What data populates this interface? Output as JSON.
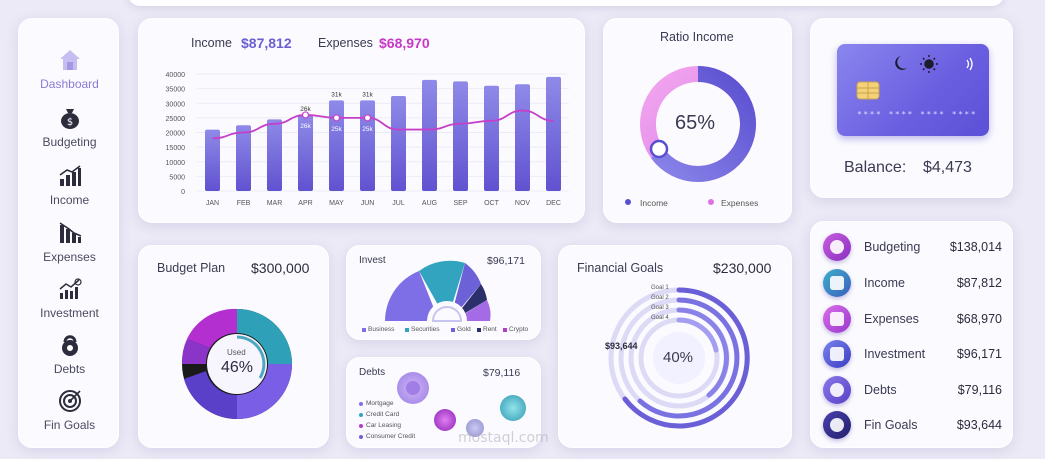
{
  "sidebar": {
    "items": [
      {
        "label": "Dashboard",
        "icon": "house-icon",
        "active": true
      },
      {
        "label": "Budgeting",
        "icon": "money-bag-icon"
      },
      {
        "label": "Income",
        "icon": "bar-chart-up-icon"
      },
      {
        "label": "Expenses",
        "icon": "bar-chart-down-icon"
      },
      {
        "label": "Investment",
        "icon": "investment-chart-icon"
      },
      {
        "label": "Debts",
        "icon": "kettlebell-icon"
      },
      {
        "label": "Fin Goals",
        "icon": "target-icon"
      }
    ]
  },
  "monthly": {
    "income_label": "Income",
    "income_value": "$87,812",
    "expenses_label": "Expenses",
    "expenses_value": "$68,970"
  },
  "ratio": {
    "title": "Ratio Income",
    "value": "65%",
    "legend": [
      "Income",
      "Expenses"
    ]
  },
  "card": {
    "balance_label": "Balance:",
    "balance_value": "$4,473",
    "number_mask": "**** **** **** ****"
  },
  "budget_plan": {
    "title": "Budget Plan",
    "value": "$300,000",
    "center_label": "Used",
    "center_value": "46%"
  },
  "invest": {
    "title": "Invest",
    "value": "$96,171",
    "legend": [
      "Business",
      "Securities",
      "Gold",
      "Rent",
      "Crypto"
    ]
  },
  "debts": {
    "title": "Debts",
    "value": "$79,116",
    "legend": [
      "Mortgage",
      "Credit Card",
      "Car Leasing",
      "Consumer Credit"
    ]
  },
  "goals": {
    "title": "Financial Goals",
    "value": "$230,000",
    "rings": [
      "Goal 1",
      "Goal 2",
      "Goal 3",
      "Goal 4"
    ],
    "left_value": "$93,644",
    "center_value": "40%"
  },
  "summary": [
    {
      "label": "Budgeting",
      "value": "$138,014",
      "color": "#b43fd0"
    },
    {
      "label": "Income",
      "value": "$87,812",
      "color": "#3e7fc7"
    },
    {
      "label": "Expenses",
      "value": "$68,970",
      "color": "#c04fd8"
    },
    {
      "label": "Investment",
      "value": "$96,171",
      "color": "#5560d6"
    },
    {
      "label": "Debts",
      "value": "$79,116",
      "color": "#6a55d0"
    },
    {
      "label": "Fin Goals",
      "value": "$93,644",
      "color": "#3a2f9a"
    }
  ],
  "watermark": "mostaql.com",
  "chart_data": {
    "type": "bar",
    "categories": [
      "JAN",
      "FEB",
      "MAR",
      "APR",
      "MAY",
      "JUN",
      "JUL",
      "AUG",
      "SEP",
      "OCT",
      "NOV",
      "DEC"
    ],
    "series": [
      {
        "values": [
          21000,
          22500,
          24500,
          26000,
          31000,
          31000,
          32500,
          38000,
          37500,
          36000,
          36500,
          39000
        ],
        "kind": "bar"
      },
      {
        "values": [
          18000,
          20000,
          23000,
          26000,
          25000,
          25000,
          21000,
          21000,
          23000,
          24000,
          27500,
          24000
        ],
        "kind": "line"
      }
    ],
    "data_labels": [
      {
        "index": 3,
        "series": 0,
        "text": "26k"
      },
      {
        "index": 4,
        "series": 0,
        "text": "31k"
      },
      {
        "index": 5,
        "series": 0,
        "text": "31k"
      },
      {
        "index": 3,
        "series": 1,
        "text": "26k"
      },
      {
        "index": 4,
        "series": 1,
        "text": "25k"
      },
      {
        "index": 5,
        "series": 1,
        "text": "25k"
      }
    ],
    "yticks": [
      "0",
      "5000",
      "10000",
      "15000",
      "20000",
      "25000",
      "30000",
      "35000",
      "40000"
    ],
    "ylim": [
      0,
      40000
    ],
    "title": "",
    "xlabel": "",
    "ylabel": ""
  }
}
